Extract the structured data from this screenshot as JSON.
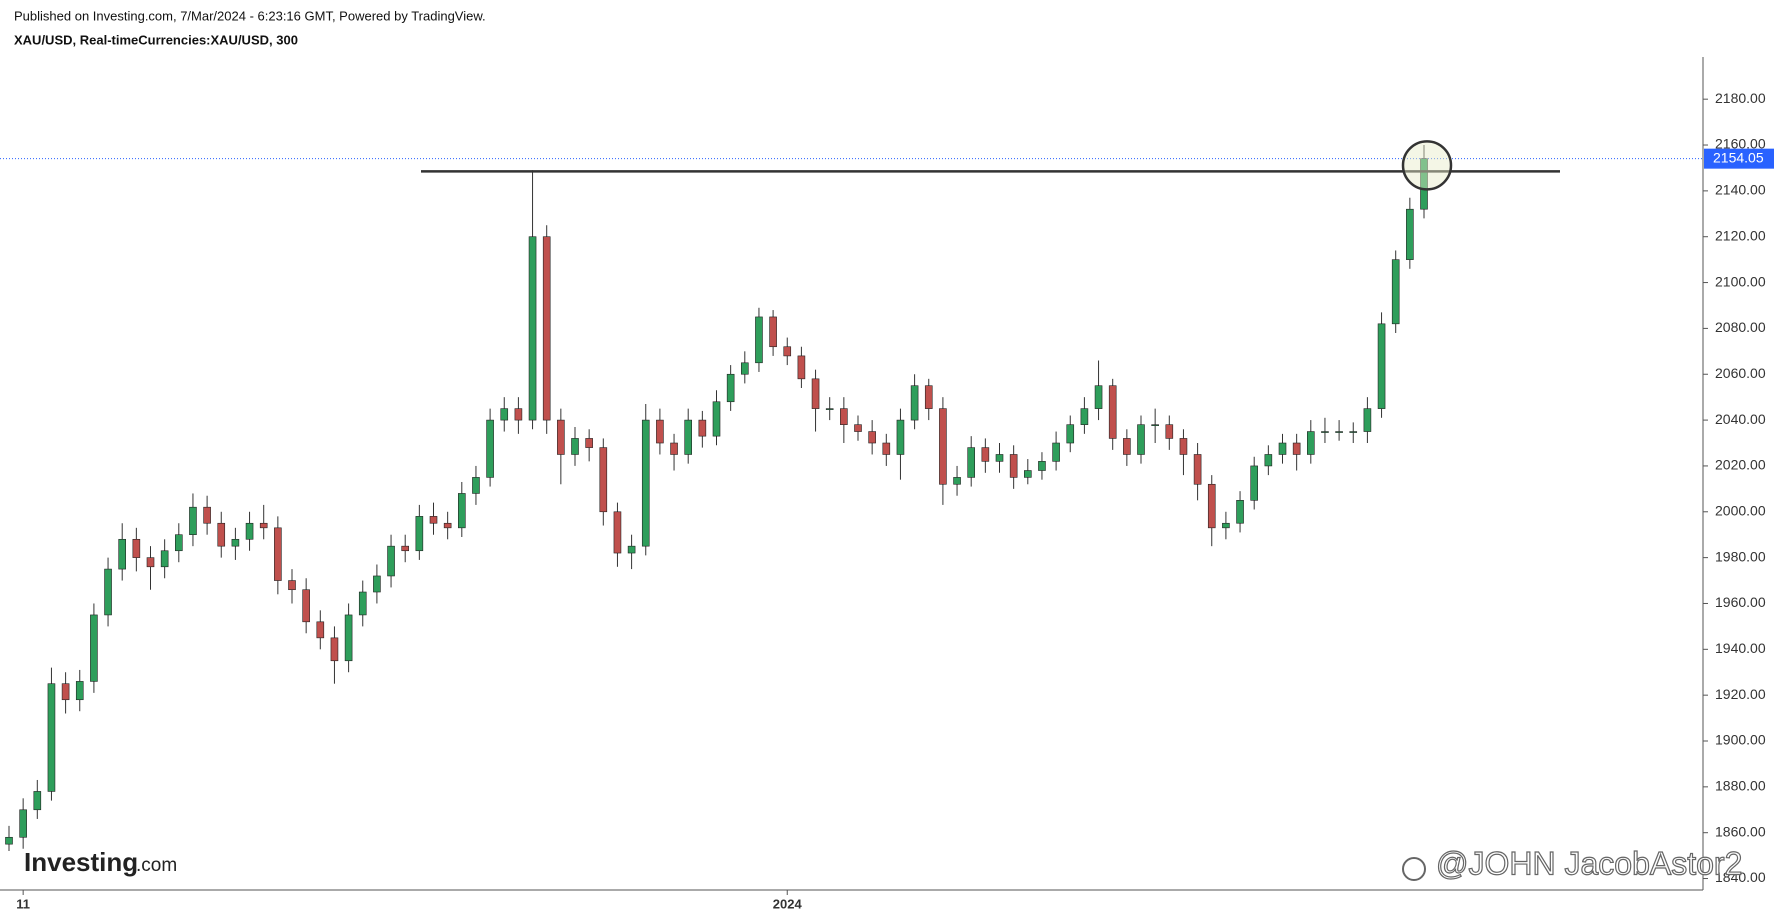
{
  "header": {
    "published": "Published on Investing.com, 7/Mar/2024 - 6:23:16 GMT, Powered by TradingView.",
    "symbol": "XAU/USD, Real-timeCurrencies:XAU/USD, 300"
  },
  "logo": {
    "brand": "Investing",
    "suffix": ".com"
  },
  "watermark": "@JOHN JacobAstor2",
  "chart_data": {
    "type": "candlestick",
    "up_color": "#2e9e5b",
    "down_color": "#c0504d",
    "wick_color": "#333333",
    "last_price_color": "#2962ff",
    "resistance_color": "#333333",
    "ylim": [
      1835,
      2198.4
    ],
    "yticks": [
      {
        "value": 1840,
        "label": "1840.00"
      },
      {
        "value": 1860,
        "label": "1860.00"
      },
      {
        "value": 1880,
        "label": "1880.00"
      },
      {
        "value": 1900,
        "label": "1900.00"
      },
      {
        "value": 1920,
        "label": "1920.00"
      },
      {
        "value": 1940,
        "label": "1940.00"
      },
      {
        "value": 1960,
        "label": "1960.00"
      },
      {
        "value": 1980,
        "label": "1980.00"
      },
      {
        "value": 2000,
        "label": "2000.00"
      },
      {
        "value": 2020,
        "label": "2020.00"
      },
      {
        "value": 2040,
        "label": "2040.00"
      },
      {
        "value": 2060,
        "label": "2060.00"
      },
      {
        "value": 2080,
        "label": "2080.00"
      },
      {
        "value": 2100,
        "label": "2100.00"
      },
      {
        "value": 2120,
        "label": "2120.00"
      },
      {
        "value": 2140,
        "label": "2140.00"
      },
      {
        "value": 2160,
        "label": "2160.00"
      },
      {
        "value": 2180,
        "label": "2180.00"
      }
    ],
    "xticks": [
      {
        "value": 1,
        "label": "11"
      },
      {
        "value": 55,
        "label": "2024"
      }
    ],
    "grid": false,
    "last_price": 2154.05,
    "resistance": 2148.5,
    "open": [
      1855,
      1858,
      1870,
      1878,
      1925,
      1918,
      1926,
      1955,
      1975,
      1988,
      1980,
      1976,
      1983,
      1990,
      2002,
      1995,
      1985,
      1988,
      1995,
      1993,
      1970,
      1966,
      1952,
      1945,
      1935,
      1955,
      1965,
      1972,
      1985,
      1983,
      1998,
      1995,
      1993,
      2008,
      2015,
      2040,
      2045,
      2040,
      2120,
      2040,
      2025,
      2032,
      2028,
      2000,
      1982,
      1985,
      2040,
      2030,
      2025,
      2040,
      2033,
      2048,
      2060,
      2065,
      2085,
      2072,
      2068,
      2058,
      2045,
      2045,
      2038,
      2035,
      2030,
      2025,
      2040,
      2055,
      2045,
      2012,
      2015,
      2028,
      2022,
      2025,
      2015,
      2018,
      2022,
      2030,
      2038,
      2045,
      2055,
      2032,
      2025,
      2038,
      2038,
      2032,
      2025,
      2012,
      1993,
      1995,
      2005,
      2020,
      2025,
      2030,
      2025,
      2035,
      2035,
      2035,
      2035,
      2045,
      2082,
      2110,
      2132
    ],
    "high": [
      1863,
      1875,
      1883,
      1932,
      1930,
      1931,
      1960,
      1980,
      1995,
      1993,
      1985,
      1988,
      1995,
      2008,
      2007,
      2000,
      1993,
      2000,
      2003,
      1998,
      1975,
      1971,
      1957,
      1950,
      1960,
      1970,
      1977,
      1990,
      1990,
      2003,
      2004,
      2000,
      2013,
      2020,
      2045,
      2050,
      2050,
      2149,
      2125,
      2045,
      2037,
      2036,
      2032,
      2004,
      1990,
      2047,
      2045,
      2034,
      2045,
      2044,
      2053,
      2064,
      2070,
      2089,
      2088,
      2076,
      2072,
      2062,
      2050,
      2050,
      2042,
      2040,
      2034,
      2045,
      2060,
      2058,
      2050,
      2020,
      2033,
      2032,
      2030,
      2029,
      2023,
      2026,
      2035,
      2042,
      2050,
      2066,
      2058,
      2036,
      2042,
      2045,
      2042,
      2036,
      2030,
      2016,
      2000,
      2009,
      2024,
      2029,
      2034,
      2034,
      2040,
      2041,
      2040,
      2039,
      2050,
      2087,
      2114,
      2137,
      2160
    ],
    "low": [
      1852,
      1853,
      1866,
      1874,
      1912,
      1913,
      1921,
      1950,
      1970,
      1974,
      1966,
      1971,
      1978,
      1985,
      1990,
      1980,
      1979,
      1983,
      1988,
      1964,
      1960,
      1947,
      1940,
      1925,
      1930,
      1950,
      1960,
      1967,
      1978,
      1979,
      1990,
      1988,
      1989,
      2003,
      2011,
      2035,
      2034,
      2036,
      2034,
      2012,
      2020,
      2022,
      1994,
      1976,
      1975,
      1981,
      2025,
      2018,
      2021,
      2028,
      2029,
      2044,
      2056,
      2061,
      2068,
      2064,
      2054,
      2035,
      2040,
      2030,
      2031,
      2025,
      2020,
      2014,
      2036,
      2040,
      2003,
      2007,
      2011,
      2017,
      2017,
      2010,
      2012,
      2014,
      2018,
      2026,
      2034,
      2040,
      2027,
      2020,
      2021,
      2030,
      2027,
      2016,
      2005,
      1985,
      1988,
      1991,
      2001,
      2016,
      2021,
      2018,
      2021,
      2030,
      2031,
      2030,
      2030,
      2041,
      2078,
      2106,
      2128
    ],
    "close": [
      1858,
      1870,
      1878,
      1925,
      1918,
      1926,
      1955,
      1975,
      1988,
      1980,
      1976,
      1983,
      1990,
      2002,
      1995,
      1985,
      1988,
      1995,
      1993,
      1970,
      1966,
      1952,
      1945,
      1935,
      1955,
      1965,
      1972,
      1985,
      1983,
      1998,
      1995,
      1993,
      2008,
      2015,
      2040,
      2045,
      2040,
      2120,
      2040,
      2025,
      2032,
      2028,
      2000,
      1982,
      1985,
      2040,
      2030,
      2025,
      2040,
      2033,
      2048,
      2060,
      2065,
      2085,
      2072,
      2068,
      2058,
      2045,
      2045,
      2038,
      2035,
      2030,
      2025,
      2040,
      2055,
      2045,
      2012,
      2015,
      2028,
      2022,
      2025,
      2015,
      2018,
      2022,
      2030,
      2038,
      2045,
      2055,
      2032,
      2025,
      2038,
      2038,
      2032,
      2025,
      2012,
      1993,
      1995,
      2005,
      2020,
      2025,
      2030,
      2025,
      2035,
      2035,
      2035,
      2035,
      2045,
      2082,
      2110,
      2132,
      2154.05
    ]
  }
}
